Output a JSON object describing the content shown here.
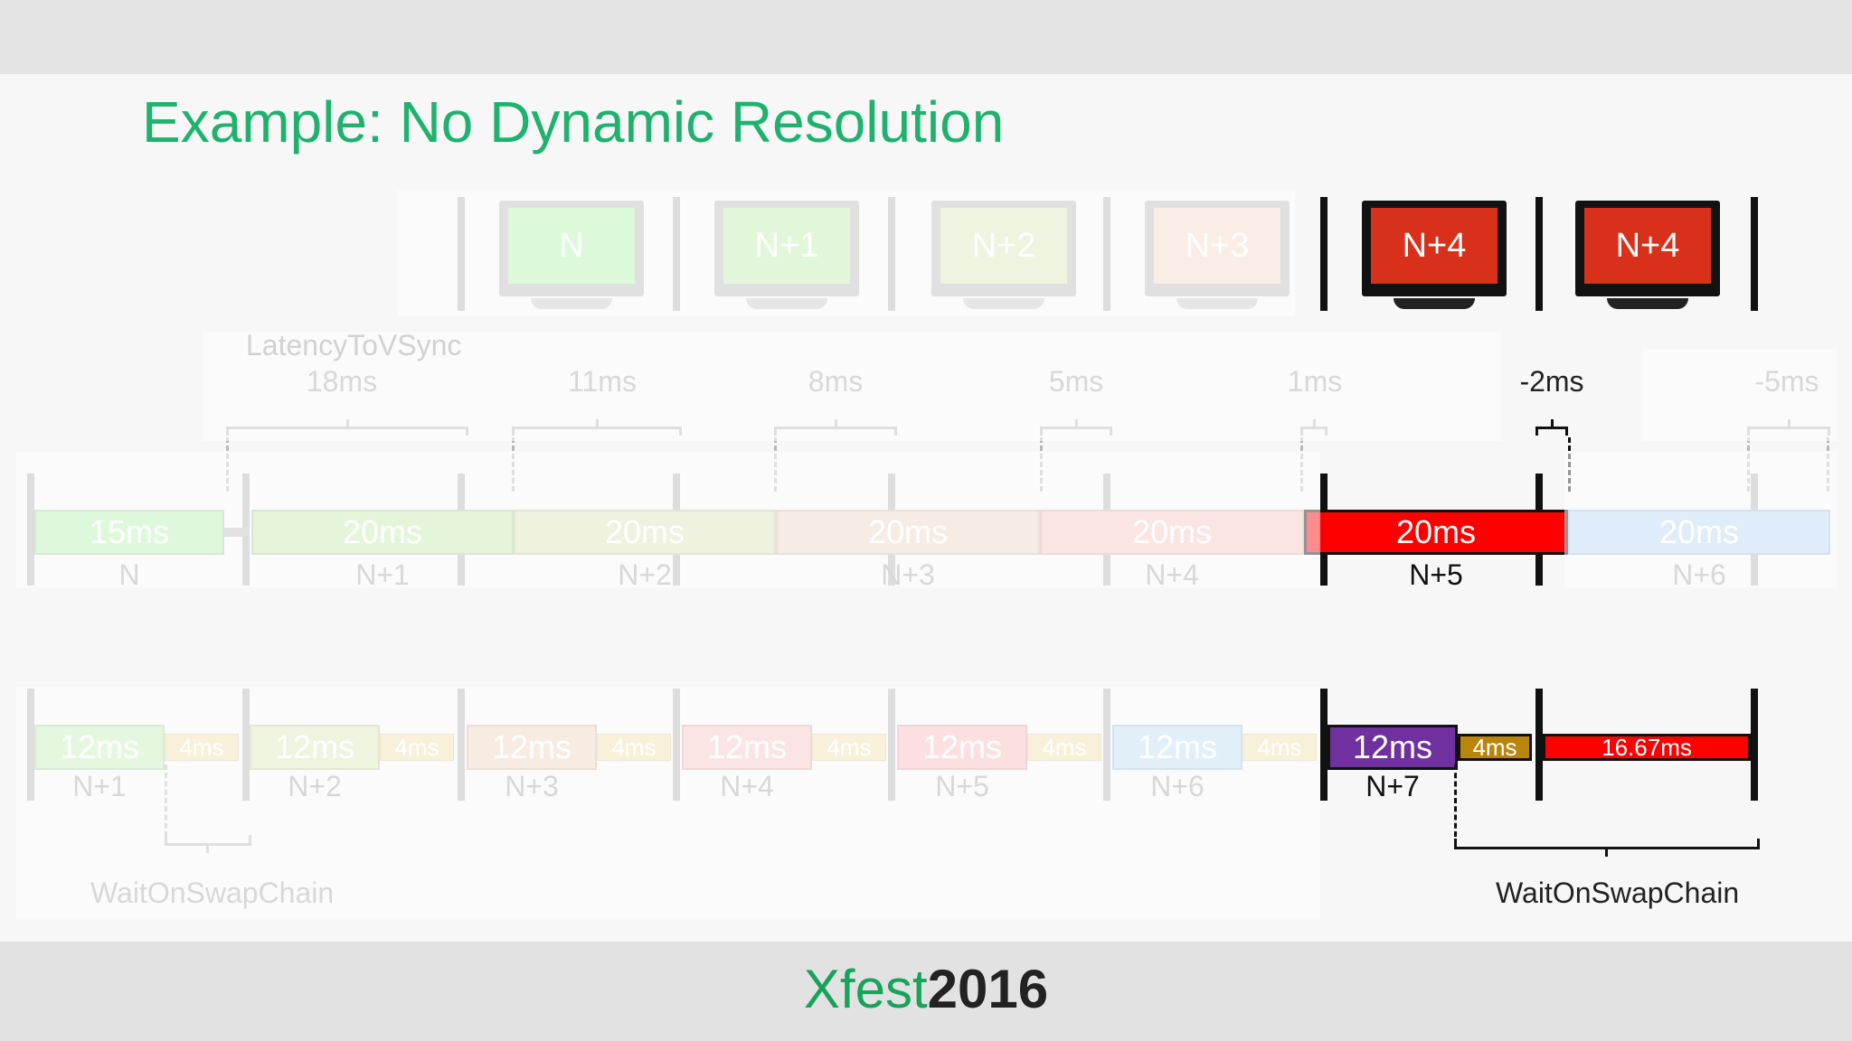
{
  "slide": {
    "title": "Example: No Dynamic Resolution"
  },
  "footer": {
    "brand_prefix": "Xfest",
    "brand_year": "2016"
  },
  "monitors": [
    {
      "label": "N",
      "color": "#a5f0a0",
      "faded": true
    },
    {
      "label": "N+1",
      "color": "#b5eda0",
      "faded": true
    },
    {
      "label": "N+2",
      "color": "#d6e4b0",
      "faded": true
    },
    {
      "label": "N+3",
      "color": "#f1d2bd",
      "faded": true
    },
    {
      "label": "N+4",
      "color": "#d8301a",
      "faded": false
    },
    {
      "label": "N+4",
      "color": "#d8301a",
      "faded": false
    }
  ],
  "latency": {
    "caption": "LatencyToVSync",
    "values": [
      "18ms",
      "11ms",
      "8ms",
      "5ms",
      "1ms",
      "-2ms",
      "-5ms"
    ]
  },
  "gpu_row": {
    "segments": [
      {
        "duration": "15ms",
        "frame": "N",
        "color": "#b6efb2"
      },
      {
        "duration": "20ms",
        "frame": "N+1",
        "color": "#c4e8ae"
      },
      {
        "duration": "20ms",
        "frame": "N+2",
        "color": "#dbe3b9"
      },
      {
        "duration": "20ms",
        "frame": "N+3",
        "color": "#ecd6c2"
      },
      {
        "duration": "20ms",
        "frame": "N+4",
        "color": "#f6c6c0"
      },
      {
        "duration": "20ms",
        "frame": "N+5",
        "color": "#ff0000"
      },
      {
        "duration": "20ms",
        "frame": "N+6",
        "color": "#b6d7f2"
      }
    ]
  },
  "cpu_row": {
    "segments": [
      {
        "work": "12ms",
        "wait": "4ms",
        "frame": "N+1",
        "color": "#c6efb9"
      },
      {
        "work": "12ms",
        "wait": "4ms",
        "frame": "N+2",
        "color": "#dbe6b9"
      },
      {
        "work": "12ms",
        "wait": "4ms",
        "frame": "N+3",
        "color": "#efd3bf"
      },
      {
        "work": "12ms",
        "wait": "4ms",
        "frame": "N+4",
        "color": "#f6c5c3"
      },
      {
        "work": "12ms",
        "wait": "4ms",
        "frame": "N+5",
        "color": "#f9b9bd"
      },
      {
        "work": "12ms",
        "wait": "4ms",
        "frame": "N+6",
        "color": "#bcdcf2"
      },
      {
        "work": "12ms",
        "wait": "4ms",
        "frame": "N+7",
        "color": "#7030a0"
      }
    ],
    "tail": {
      "duration": "16.67ms",
      "color": "#ff0000"
    },
    "wait_color": "#f1ddaa",
    "wait_color_active": "#b8860b",
    "wait_label_left": "WaitOnSwapChain",
    "wait_label_right": "WaitOnSwapChain"
  }
}
